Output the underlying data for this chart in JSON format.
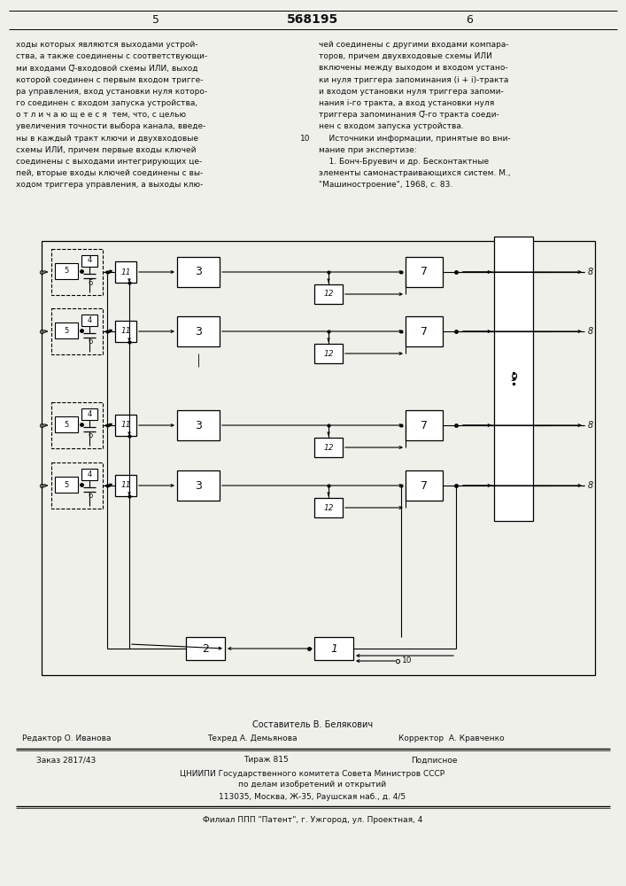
{
  "title_num": "568195",
  "page_left": "5",
  "page_right": "6",
  "left_lines": [
    "ходы которых являются выходами устрой-",
    "ства, а также соединены с соответствующи-",
    "ми входами Q̅-входовой схемы ИЛИ, выход",
    "которой соединен с первым входом тригге-",
    "ра управления, вход установки нуля которо-",
    "го соединен с входом запуска устройства,",
    "о т л и ч а ю щ е е с я  тем, что, с целью",
    "увеличения точности выбора канала, введе-",
    "ны в каждый тракт ключи и двухвходовые",
    "схемы ИЛИ, причем первые входы ключей",
    "соединены с выходами интегрирующих це-",
    "пей, вторые входы ключей соединены с вы-",
    "ходом триггера управления, а выходы клю-"
  ],
  "right_lines": [
    "чей соединены с другими входами компара-",
    "торов, причем двухвходовые схемы ИЛИ",
    "включены между выходом и входом устано-",
    "ки нуля триггера запоминания (i + i)-тракта",
    "и входом установки нуля триггера запоми-",
    "нания i-го тракта, а вход установки нуля",
    "триггера запоминания Q̅-го тракта соеди-",
    "нен с входом запуска устройства.",
    "    Источники информации, принятые во вни-",
    "мание при экспертизе:",
    "    1. Бонч-Бруевич и др. Бесконтактные",
    "элементы самонастраивающихся систем. М.,",
    "\"Машиностроение\", 1968, с. 83."
  ],
  "ref_num_line": 8,
  "footer_composer": "Составитель В. Белякович",
  "footer_editor": "Редактор О. Иванова",
  "footer_tech": "Техред А. Демьянова",
  "footer_corrector": "Корректор  А. Кравченко",
  "footer_order": "Заказ 2817/43",
  "footer_print": "Тираж 815",
  "footer_sign": "Подписное",
  "footer_org1": "ЦНИИПИ Государственного комитета Совета Министров СССР",
  "footer_org2": "по делам изобретений и открытий",
  "footer_addr": "113035, Москва, Ж-35, Раушская наб., д. 4/5",
  "footer_branch": "Филиал ППП \"Патент\", г. Ужгород, ул. Проектная, 4",
  "bg_color": "#f0f0eb",
  "line_color": "#1a1a1a",
  "text_color": "#111111"
}
